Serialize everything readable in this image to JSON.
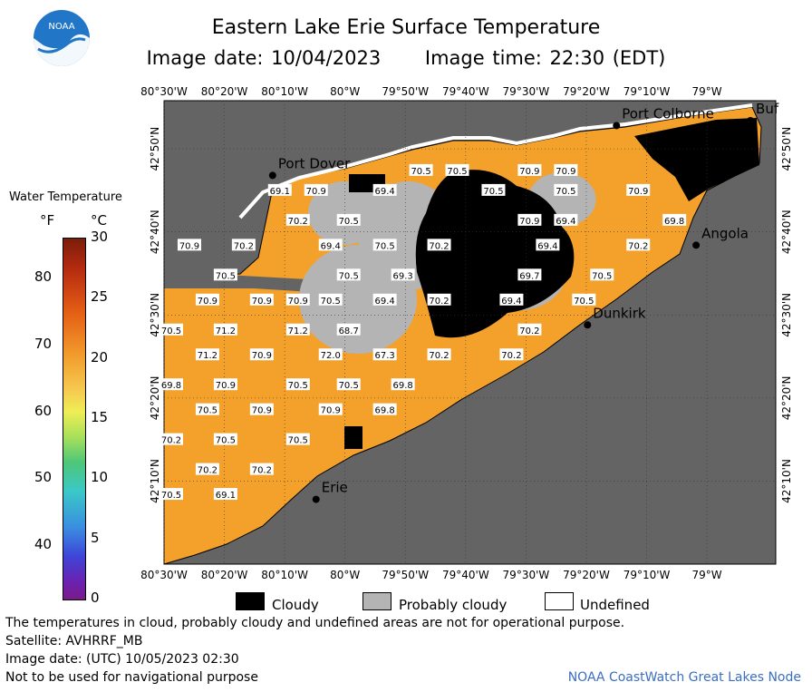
{
  "header": {
    "title": "Eastern Lake Erie Surface Temperature",
    "image_date": "Image date: 10/04/2023",
    "image_time": "Image time: 22:30 (EDT)"
  },
  "logo": {
    "text": "NOAA"
  },
  "map": {
    "top_ticks": [
      "80°30'W",
      "80°20'W",
      "80°10'W",
      "80°W",
      "79°50'W",
      "79°40'W",
      "79°30'W",
      "79°20'W",
      "79°10'W",
      "79°W"
    ],
    "bottom_ticks": [
      "80°30'W",
      "80°20'W",
      "80°10'W",
      "80°W",
      "79°50'W",
      "79°40'W",
      "79°30'W",
      "79°20'W",
      "79°10'W",
      "79°W"
    ],
    "left_ticks": [
      "42°50'N",
      "42°40'N",
      "42°30'N",
      "42°20'N",
      "42°10'N"
    ],
    "right_ticks": [
      "42°50'N",
      "42°40'N",
      "42°30'N",
      "42°20'N",
      "42°10'N"
    ],
    "cities": [
      {
        "name": "Port Colborne",
        "lon": -79.25,
        "lat": 42.88
      },
      {
        "name": "Port Dover",
        "lon": -80.2,
        "lat": 42.78
      },
      {
        "name": "Angola",
        "lon": -79.03,
        "lat": 42.64
      },
      {
        "name": "Dunkirk",
        "lon": -79.33,
        "lat": 42.48
      },
      {
        "name": "Erie",
        "lon": -80.08,
        "lat": 42.13
      },
      {
        "name": "Buf",
        "lon": -78.88,
        "lat": 42.89
      }
    ],
    "temperatures": [
      {
        "v": "70.5",
        "lon": -79.79,
        "lat": 42.79
      },
      {
        "v": "70.5",
        "lon": -79.69,
        "lat": 42.79
      },
      {
        "v": "70.9",
        "lon": -79.49,
        "lat": 42.79
      },
      {
        "v": "70.9",
        "lon": -79.39,
        "lat": 42.79
      },
      {
        "v": "69.1",
        "lon": -80.18,
        "lat": 42.75
      },
      {
        "v": "70.9",
        "lon": -80.08,
        "lat": 42.75
      },
      {
        "v": "69.4",
        "lon": -79.89,
        "lat": 42.75
      },
      {
        "v": "70.5",
        "lon": -79.59,
        "lat": 42.75
      },
      {
        "v": "70.5",
        "lon": -79.39,
        "lat": 42.75
      },
      {
        "v": "70.9",
        "lon": -79.19,
        "lat": 42.75
      },
      {
        "v": "70.2",
        "lon": -80.13,
        "lat": 42.69
      },
      {
        "v": "70.5",
        "lon": -79.99,
        "lat": 42.69
      },
      {
        "v": "70.9",
        "lon": -79.49,
        "lat": 42.69
      },
      {
        "v": "69.4",
        "lon": -79.39,
        "lat": 42.69
      },
      {
        "v": "69.8",
        "lon": -79.09,
        "lat": 42.69
      },
      {
        "v": "70.9",
        "lon": -80.43,
        "lat": 42.64
      },
      {
        "v": "70.2",
        "lon": -80.28,
        "lat": 42.64
      },
      {
        "v": "69.4",
        "lon": -80.04,
        "lat": 42.64
      },
      {
        "v": "70.5",
        "lon": -79.89,
        "lat": 42.64
      },
      {
        "v": "70.2",
        "lon": -79.74,
        "lat": 42.64
      },
      {
        "v": "69.4",
        "lon": -79.44,
        "lat": 42.64
      },
      {
        "v": "70.2",
        "lon": -79.19,
        "lat": 42.64
      },
      {
        "v": "70.5",
        "lon": -80.33,
        "lat": 42.58
      },
      {
        "v": "70.5",
        "lon": -79.99,
        "lat": 42.58
      },
      {
        "v": "69.3",
        "lon": -79.84,
        "lat": 42.58
      },
      {
        "v": "69.7",
        "lon": -79.49,
        "lat": 42.58
      },
      {
        "v": "70.5",
        "lon": -79.29,
        "lat": 42.58
      },
      {
        "v": "70.9",
        "lon": -80.38,
        "lat": 42.53
      },
      {
        "v": "70.9",
        "lon": -80.23,
        "lat": 42.53
      },
      {
        "v": "70.9",
        "lon": -80.13,
        "lat": 42.53
      },
      {
        "v": "70.5",
        "lon": -80.04,
        "lat": 42.53
      },
      {
        "v": "69.4",
        "lon": -79.89,
        "lat": 42.53
      },
      {
        "v": "70.2",
        "lon": -79.74,
        "lat": 42.53
      },
      {
        "v": "69.4",
        "lon": -79.54,
        "lat": 42.53
      },
      {
        "v": "70.5",
        "lon": -79.34,
        "lat": 42.53
      },
      {
        "v": "70.5",
        "lon": -80.48,
        "lat": 42.47
      },
      {
        "v": "71.2",
        "lon": -80.33,
        "lat": 42.47
      },
      {
        "v": "71.2",
        "lon": -80.13,
        "lat": 42.47
      },
      {
        "v": "68.7",
        "lon": -79.99,
        "lat": 42.47
      },
      {
        "v": "70.2",
        "lon": -79.49,
        "lat": 42.47
      },
      {
        "v": "71.2",
        "lon": -80.38,
        "lat": 42.42
      },
      {
        "v": "70.9",
        "lon": -80.23,
        "lat": 42.42
      },
      {
        "v": "72.0",
        "lon": -80.04,
        "lat": 42.42
      },
      {
        "v": "67.3",
        "lon": -79.89,
        "lat": 42.42
      },
      {
        "v": "70.2",
        "lon": -79.74,
        "lat": 42.42
      },
      {
        "v": "70.2",
        "lon": -79.54,
        "lat": 42.42
      },
      {
        "v": "69.8",
        "lon": -80.48,
        "lat": 42.36
      },
      {
        "v": "70.9",
        "lon": -80.33,
        "lat": 42.36
      },
      {
        "v": "70.5",
        "lon": -80.13,
        "lat": 42.36
      },
      {
        "v": "70.5",
        "lon": -79.99,
        "lat": 42.36
      },
      {
        "v": "69.8",
        "lon": -79.84,
        "lat": 42.36
      },
      {
        "v": "70.5",
        "lon": -80.38,
        "lat": 42.31
      },
      {
        "v": "70.9",
        "lon": -80.23,
        "lat": 42.31
      },
      {
        "v": "70.9",
        "lon": -80.04,
        "lat": 42.31
      },
      {
        "v": "69.8",
        "lon": -79.89,
        "lat": 42.31
      },
      {
        "v": "70.2",
        "lon": -80.48,
        "lat": 42.25
      },
      {
        "v": "70.5",
        "lon": -80.33,
        "lat": 42.25
      },
      {
        "v": "70.5",
        "lon": -80.13,
        "lat": 42.25
      },
      {
        "v": "70.2",
        "lon": -80.38,
        "lat": 42.19
      },
      {
        "v": "70.2",
        "lon": -80.23,
        "lat": 42.19
      },
      {
        "v": "70.5",
        "lon": -80.48,
        "lat": 42.14
      },
      {
        "v": "69.1",
        "lon": -80.33,
        "lat": 42.14
      }
    ]
  },
  "legend": {
    "title": "Water Temperature",
    "unit_f": "°F",
    "unit_c": "°C",
    "f_labels": [
      "80",
      "70",
      "60",
      "50",
      "40"
    ],
    "c_labels": [
      "30",
      "25",
      "20",
      "15",
      "10",
      "5",
      "0"
    ]
  },
  "key": {
    "cloudy": "Cloudy",
    "probably_cloudy": "Probably cloudy",
    "undefined": "Undefined",
    "cloudy_color": "#000000",
    "probably_cloudy_color": "#b4b4b4",
    "undefined_color": "#ffffff"
  },
  "footer": {
    "disclaimer": "The temperatures in cloud, probably cloudy and undefined areas are not for operational purpose.",
    "satellite": "Satellite: AVHRRF_MB",
    "utc_date": "Image date: (UTC) 10/05/2023  02:30",
    "nav_warning": "Not to be used for navigational purpose",
    "node": "NOAA CoastWatch Great Lakes Node"
  },
  "colors": {
    "land": "#646464",
    "water": "#f3a12a",
    "frame": "#000000"
  }
}
